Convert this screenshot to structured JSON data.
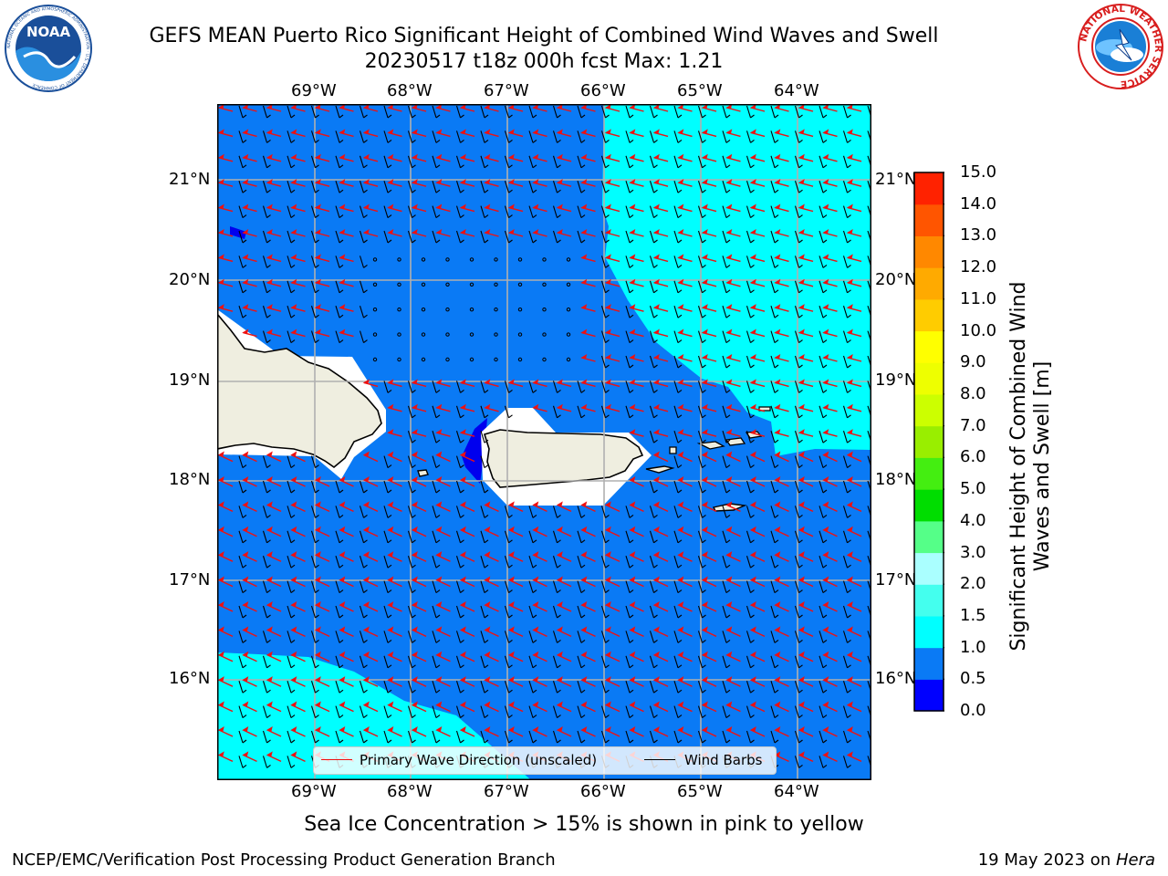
{
  "title": {
    "line1": "GEFS MEAN Puerto Rico Significant Height of Combined Wind Waves and Swell",
    "line2": "20230517 t18z 000h fcst   Max: 1.21"
  },
  "logos": {
    "left": {
      "text": "NOAA",
      "ring_text": "NATIONAL OCEANIC AND ATMOSPHERIC ADMINISTRATION · U.S. DEPARTMENT OF COMMERCE",
      "color": "#1a4f9a"
    },
    "right": {
      "ring_text": "NATIONAL WEATHER SERVICE",
      "color": "#d81e1e"
    }
  },
  "map": {
    "lon_labels": [
      "69°W",
      "68°W",
      "67°W",
      "66°W",
      "65°W",
      "64°W"
    ],
    "lat_labels": [
      "21°N",
      "20°N",
      "19°N",
      "18°N",
      "17°N",
      "16°N"
    ],
    "colors": {
      "ocean_05_10": "#0a7af5",
      "ocean_10_15": "#00ffff",
      "ocean_00_05": "#0000ee",
      "land": "#efeee0",
      "grid": "#b0b0b0",
      "wave_arrow": "#ee1111",
      "wind_barb": "#000000"
    }
  },
  "legend": {
    "wave_label": "Primary Wave Direction (unscaled)",
    "wind_label": "Wind Barbs"
  },
  "colorbar": {
    "label": "Significant Height of Combined Wind Waves and Swell [m]",
    "ticks": [
      "0.0",
      "0.5",
      "1.0",
      "1.5",
      "2.0",
      "3.0",
      "4.0",
      "5.0",
      "6.0",
      "7.0",
      "8.0",
      "9.0",
      "10.0",
      "11.0",
      "12.0",
      "13.0",
      "14.0",
      "15.0"
    ],
    "colors": [
      "#0000ff",
      "#0a7af5",
      "#00ffff",
      "#44ffee",
      "#aaffff",
      "#55ff88",
      "#00dd00",
      "#44ee11",
      "#99ee00",
      "#ccff00",
      "#eeff00",
      "#ffff00",
      "#ffcc00",
      "#ffaa00",
      "#ff8800",
      "#ff5500",
      "#ff2200",
      "#ff0000"
    ]
  },
  "notes": {
    "sea_ice": "Sea Ice Concentration > 15% is shown in pink to yellow",
    "credit": "NCEP/EMC/Verification Post Processing Product Generation Branch",
    "date": "19 May 2023 on ",
    "machine": "Hera"
  }
}
